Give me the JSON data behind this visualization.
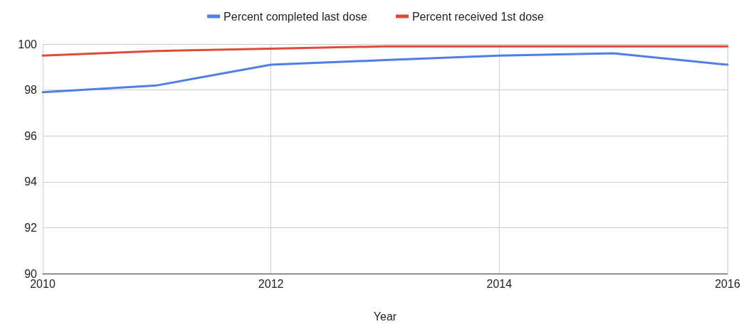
{
  "chart_data": {
    "type": "line",
    "xlabel": "Year",
    "x": [
      2010,
      2011,
      2012,
      2013,
      2014,
      2015,
      2016
    ],
    "series": [
      {
        "name": "Percent completed last dose",
        "color": "#4f7fe6",
        "values": [
          97.9,
          98.2,
          99.1,
          99.3,
          99.5,
          99.6,
          99.1
        ]
      },
      {
        "name": "Percent received 1st dose",
        "color": "#dd4b39",
        "values": [
          99.5,
          99.7,
          99.8,
          99.9,
          99.9,
          99.9,
          99.9
        ]
      }
    ],
    "xlim": [
      2010,
      2016
    ],
    "xticks": [
      2010,
      2012,
      2014,
      2016
    ],
    "ylim": [
      90,
      100
    ],
    "yticks": [
      90,
      92,
      94,
      96,
      98,
      100
    ],
    "grid": true,
    "legend": "top",
    "marker": "none",
    "line_style": "solid"
  }
}
